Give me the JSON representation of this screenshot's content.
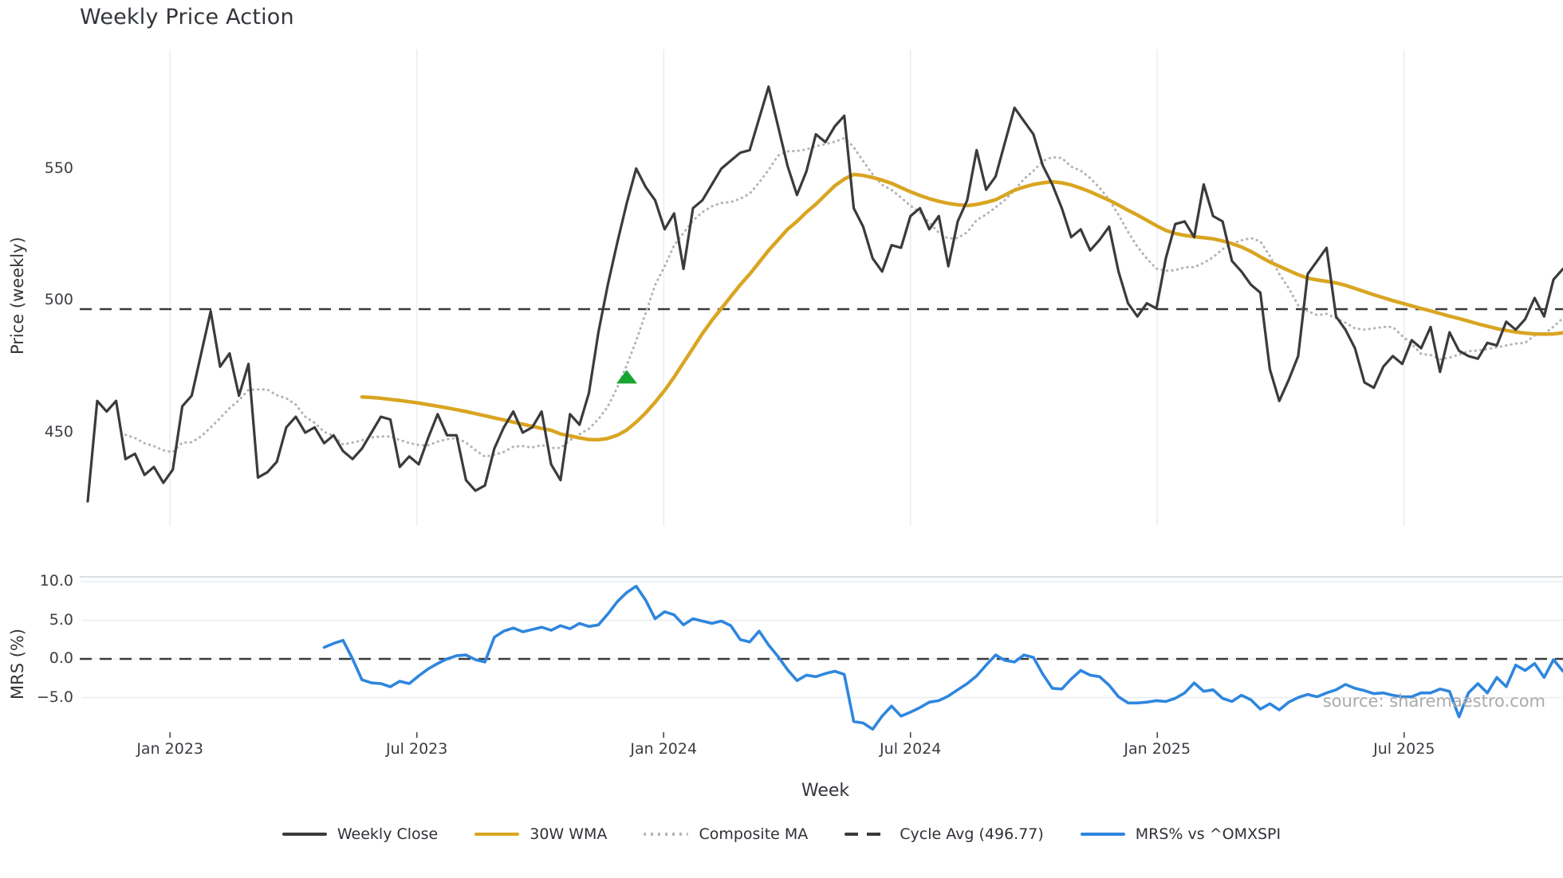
{
  "title": "Weekly Price Action",
  "source_note": "source: sharemaestro.com",
  "colors": {
    "close": "#3b3b3f",
    "wma": "#d9a521",
    "composite": "#b4b4b4",
    "cycle_avg": "#3a3a3a",
    "mrs": "#2e86de",
    "marker": "#18a52f",
    "grid": "#e9edf1",
    "spine": "#cfd4da",
    "text": "#3a3d42",
    "source_text": "#a9abad"
  },
  "legend": {
    "items": [
      {
        "label": "Weekly Close",
        "color": "#3b3b3f",
        "style": "solid"
      },
      {
        "label": "30W WMA",
        "color": "#d9a521",
        "style": "solid"
      },
      {
        "label": "Composite MA",
        "color": "#b4b4b4",
        "style": "dotted"
      },
      {
        "label": "Cycle Avg (496.77)",
        "color": "#3a3a3a",
        "style": "dashed"
      },
      {
        "label": "MRS% vs ^OMXSPI",
        "color": "#2e86de",
        "style": "solid"
      }
    ]
  },
  "chart_data": [
    {
      "panel": "price",
      "type": "line",
      "title": "Weekly Price Action",
      "ylabel": "Price (weekly)",
      "ylim": [
        414.7,
        595.3
      ],
      "grid": "vertical-only",
      "yticks": [
        {
          "label": "550",
          "value": 550
        },
        {
          "label": "500",
          "value": 500
        },
        {
          "label": "450",
          "value": 450
        }
      ],
      "xticks": [
        {
          "label": "Jan 2023",
          "index": 8.7
        },
        {
          "label": "Jul 2023",
          "index": 34.8
        },
        {
          "label": "Jan 2024",
          "index": 60.9
        },
        {
          "label": "Jul 2024",
          "index": 87.0
        },
        {
          "label": "Jan 2025",
          "index": 113.1
        },
        {
          "label": "Jul 2025",
          "index": 139.2
        }
      ],
      "x_unit": "week-index",
      "x_index_range": [
        0,
        156
      ],
      "cycle_avg": 496.77,
      "signal_marker": {
        "shape": "triangle-up",
        "color": "#18a52f",
        "index": 57,
        "price": 471
      },
      "series": [
        {
          "name": "Weekly Close",
          "style": "solid",
          "color": "#3b3b3f",
          "start_index": 0,
          "values": [
            424,
            462,
            458,
            462,
            440,
            442,
            434,
            437,
            431,
            436,
            460,
            464,
            480,
            496,
            475,
            480,
            464,
            476,
            433,
            435,
            439,
            452,
            456,
            450,
            452,
            446,
            449,
            443,
            440,
            444,
            450,
            456,
            455,
            437,
            441,
            438,
            448,
            457,
            449,
            449,
            432,
            428,
            430,
            444,
            452,
            458,
            450,
            452,
            458,
            438,
            432,
            457,
            453,
            465,
            488,
            506,
            522,
            537,
            550,
            543,
            538,
            527,
            533,
            512,
            535,
            538,
            544,
            550,
            553,
            556,
            557,
            569,
            581,
            566,
            551,
            540,
            549,
            563,
            560,
            566,
            570,
            535,
            528,
            516,
            511,
            521,
            520,
            532,
            535,
            527,
            532,
            513,
            530,
            538,
            557,
            542,
            547,
            560,
            573,
            568,
            563,
            551,
            544,
            535,
            524,
            527,
            519,
            523,
            528,
            511,
            499,
            494,
            499,
            497,
            516,
            529,
            530,
            524,
            544,
            532,
            530,
            515,
            511,
            506,
            503,
            474,
            462,
            470,
            479,
            510,
            515,
            520,
            494,
            489,
            482,
            469,
            467,
            475,
            479,
            476,
            485,
            482,
            490,
            473,
            488,
            481,
            479,
            478,
            484,
            483,
            492,
            489,
            493,
            501,
            494,
            508,
            512
          ]
        },
        {
          "name": "30W WMA",
          "style": "solid",
          "color": "#d9a521",
          "start_index": 29,
          "values": [
            463.5,
            463.3,
            463.0,
            462.6,
            462.2,
            461.7,
            461.2,
            460.6,
            460.0,
            459.4,
            458.7,
            458.0,
            457.2,
            456.4,
            455.6,
            454.8,
            454.0,
            453.2,
            452.4,
            451.6,
            450.9,
            449.5,
            448.8,
            448.0,
            447.4,
            447.3,
            447.8,
            449.0,
            451.0,
            454.0,
            457.5,
            461.5,
            466.0,
            471.0,
            476.5,
            482.0,
            487.5,
            492.5,
            497.0,
            501.5,
            506.0,
            510.0,
            514.5,
            519.0,
            523.0,
            527.0,
            530.0,
            533.5,
            536.5,
            540.0,
            543.5,
            546.0,
            547.8,
            547.4,
            546.6,
            545.6,
            544.4,
            542.8,
            541.2,
            539.8,
            538.6,
            537.6,
            536.8,
            536.3,
            536.0,
            536.4,
            537.2,
            538.2,
            540.0,
            541.8,
            543.0,
            544.0,
            544.6,
            545.0,
            544.6,
            543.8,
            542.6,
            541.2,
            539.6,
            538.0,
            536.2,
            534.2,
            532.4,
            530.4,
            528.4,
            526.6,
            525.4,
            524.7,
            524.2,
            523.8,
            523.4,
            522.6,
            521.6,
            520.3,
            518.6,
            516.6,
            514.6,
            513.0,
            511.4,
            509.8,
            508.5,
            507.8,
            507.3,
            506.7,
            505.8,
            504.6,
            503.4,
            502.2,
            501.1,
            500.0,
            499.0,
            498.0,
            497.0,
            496.1,
            495.1,
            494.1,
            493.2,
            492.2,
            491.2,
            490.3,
            489.4,
            488.7,
            488.1,
            487.7,
            487.4,
            487.3,
            487.4,
            487.8
          ]
        },
        {
          "name": "Composite MA",
          "style": "dotted",
          "color": "#b4b4b4",
          "start_index": 4,
          "values": [
            449.2,
            448.0,
            446.0,
            444.9,
            443.3,
            442.6,
            446.2,
            446.4,
            448.6,
            452.0,
            455.5,
            459.3,
            462.3,
            466.2,
            466.4,
            466.3,
            464.2,
            463.0,
            460.6,
            456.0,
            453.7,
            450.3,
            448.8,
            445.5,
            446.2,
            447.1,
            448.2,
            448.6,
            448.5,
            447.2,
            446.1,
            445.3,
            445.2,
            446.6,
            447.5,
            448.0,
            446.2,
            443.4,
            440.9,
            441.6,
            442.7,
            444.7,
            444.9,
            444.4,
            445.3,
            444.2,
            444.2,
            447.1,
            449.4,
            451.5,
            455.1,
            459.9,
            467.1,
            475.6,
            484.8,
            495.3,
            505.9,
            512.9,
            520.9,
            525.6,
            530.3,
            533.5,
            535.7,
            537.0,
            537.3,
            538.6,
            540.5,
            544.7,
            549.5,
            554.9,
            556.5,
            556.7,
            557.2,
            558.5,
            559.2,
            560.2,
            561.5,
            558.1,
            552.8,
            547.8,
            543.8,
            541.9,
            539.0,
            535.9,
            533.4,
            529.5,
            525.7,
            523.5,
            523.7,
            525.9,
            530.5,
            532.6,
            535.3,
            538.1,
            541.9,
            546.0,
            549.1,
            552.9,
            554.3,
            554.0,
            550.7,
            549.2,
            546.4,
            542.7,
            538.2,
            532.5,
            526.1,
            520.4,
            515.9,
            512.1,
            511.3,
            511.5,
            512.6,
            512.7,
            514.3,
            516.4,
            519.5,
            521.6,
            522.8,
            523.7,
            522.4,
            516.9,
            510.1,
            504.7,
            498.2,
            496.0,
            494.5,
            495.0,
            493.3,
            491.6,
            489.5,
            489.0,
            489.5,
            490.0,
            490.0,
            486.6,
            483.6,
            479.8,
            479.4,
            477.8,
            478.4,
            479.6,
            480.8,
            481.1,
            481.6,
            482.3,
            483.0,
            483.7,
            484.0,
            486.8,
            487.4,
            490.1,
            493.4
          ]
        },
        {
          "name": "Cycle Avg (496.77)",
          "style": "dashed",
          "color": "#3a3a3a",
          "constant": 496.77
        }
      ]
    },
    {
      "panel": "mrs",
      "type": "line",
      "ylabel": "MRS (%)",
      "xlabel": "Week",
      "ylim": [
        -9.6,
        10.6
      ],
      "grid": "horizontal-only",
      "zero_line": 0,
      "yticks": [
        {
          "label": "10.0",
          "value": 10
        },
        {
          "label": "5.0",
          "value": 5
        },
        {
          "label": "0.0",
          "value": 0
        },
        {
          "label": "−5.0",
          "value": -5
        }
      ],
      "xticks": [
        {
          "label": "Jan 2023",
          "index": 8.7
        },
        {
          "label": "Jul 2023",
          "index": 34.8
        },
        {
          "label": "Jan 2024",
          "index": 60.9
        },
        {
          "label": "Jul 2024",
          "index": 87.0
        },
        {
          "label": "Jan 2025",
          "index": 113.1
        },
        {
          "label": "Jul 2025",
          "index": 139.2
        }
      ],
      "series": [
        {
          "name": "MRS% vs ^OMXSPI",
          "style": "solid",
          "color": "#2e86de",
          "start_index": 25,
          "values": [
            1.5,
            2.0,
            2.4,
            0.0,
            -2.7,
            -3.1,
            -3.2,
            -3.6,
            -2.9,
            -3.2,
            -2.2,
            -1.3,
            -0.6,
            0.0,
            0.4,
            0.5,
            -0.1,
            -0.4,
            2.8,
            3.6,
            4.0,
            3.5,
            3.8,
            4.1,
            3.7,
            4.3,
            3.9,
            4.6,
            4.2,
            4.4,
            5.8,
            7.4,
            8.6,
            9.4,
            7.6,
            5.2,
            6.1,
            5.7,
            4.4,
            5.2,
            4.9,
            4.6,
            4.9,
            4.3,
            2.5,
            2.2,
            3.6,
            1.8,
            0.3,
            -1.4,
            -2.8,
            -2.1,
            -2.3,
            -1.9,
            -1.6,
            -2.0,
            -8.1,
            -8.3,
            -9.1,
            -7.4,
            -6.1,
            -7.4,
            -6.9,
            -6.3,
            -5.6,
            -5.4,
            -4.8,
            -4.0,
            -3.2,
            -2.2,
            -0.8,
            0.5,
            -0.2,
            -0.4,
            0.5,
            0.2,
            -2.0,
            -3.8,
            -3.9,
            -2.6,
            -1.5,
            -2.1,
            -2.3,
            -3.4,
            -4.9,
            -5.7,
            -5.7,
            -5.6,
            -5.4,
            -5.5,
            -5.1,
            -4.4,
            -3.1,
            -4.2,
            -4.0,
            -5.1,
            -5.5,
            -4.7,
            -5.3,
            -6.5,
            -5.8,
            -6.6,
            -5.6,
            -5.0,
            -4.6,
            -4.9,
            -4.4,
            -4.0,
            -3.3,
            -3.8,
            -4.1,
            -4.5,
            -4.4,
            -4.7,
            -4.9,
            -4.9,
            -4.4,
            -4.4,
            -3.9,
            -4.2,
            -7.5,
            -4.4,
            -3.2,
            -4.4,
            -2.4,
            -3.6,
            -0.8,
            -1.5,
            -0.6,
            -2.4,
            -0.1,
            -1.6
          ]
        }
      ]
    }
  ]
}
